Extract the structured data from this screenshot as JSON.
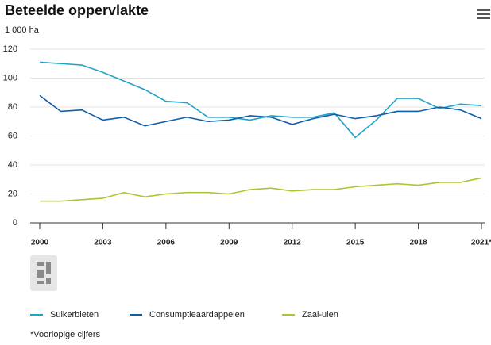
{
  "chart_data": {
    "type": "line",
    "title": "Beteelde oppervlakte",
    "y_unit": "1 000 ha",
    "x": [
      2000,
      2001,
      2002,
      2003,
      2004,
      2005,
      2006,
      2007,
      2008,
      2009,
      2010,
      2011,
      2012,
      2013,
      2014,
      2015,
      2016,
      2017,
      2018,
      2019,
      2020,
      2021
    ],
    "xlim": [
      2000,
      2021
    ],
    "xticks": [
      2000,
      2003,
      2006,
      2009,
      2012,
      2015,
      2018,
      {
        "value": 2021,
        "label": "2021*"
      }
    ],
    "ylim": [
      0,
      120
    ],
    "yticks": [
      0,
      20,
      40,
      60,
      80,
      100,
      120
    ],
    "grid": true,
    "series": [
      {
        "name": "Suikerbieten",
        "color": "#22a3c8",
        "values": [
          111,
          110,
          109,
          104,
          98,
          92,
          84,
          83,
          73,
          73,
          71,
          74,
          73,
          73,
          76,
          59,
          71,
          86,
          86,
          79,
          82,
          81
        ]
      },
      {
        "name": "Consumptieaardappelen",
        "color": "#0f5ea8",
        "values": [
          88,
          77,
          78,
          71,
          73,
          67,
          70,
          73,
          70,
          71,
          74,
          73,
          68,
          72,
          75,
          72,
          74,
          77,
          77,
          80,
          78,
          72
        ]
      },
      {
        "name": "Zaai-uien",
        "color": "#a8c832",
        "values": [
          15,
          15,
          16,
          17,
          21,
          18,
          20,
          21,
          21,
          20,
          23,
          24,
          22,
          23,
          23,
          25,
          26,
          27,
          26,
          28,
          28,
          31
        ]
      }
    ],
    "footnote": "*Voorlopige cijfers"
  }
}
